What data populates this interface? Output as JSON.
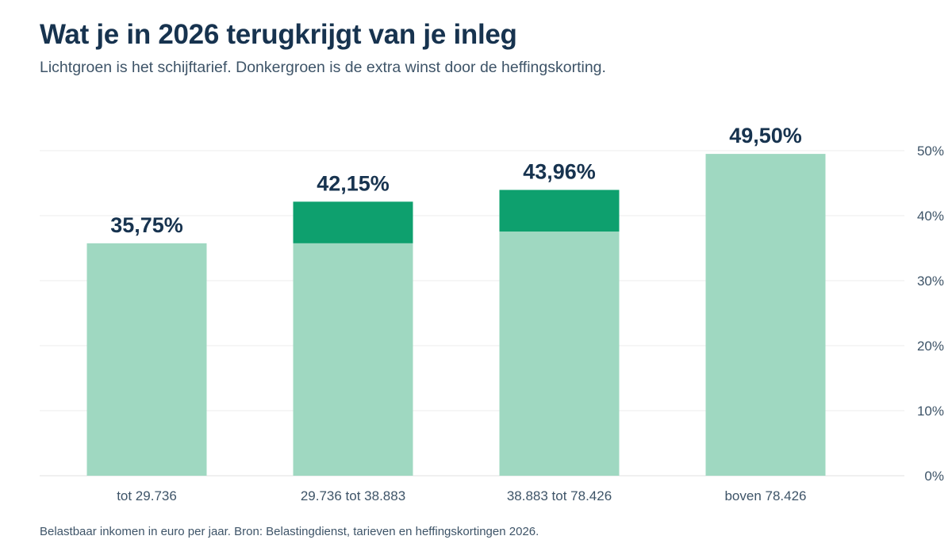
{
  "header": {
    "title": "Wat je in 2026 terugkrijgt van je inleg",
    "subtitle": "Lichtgroen is het schijftarief. Donkergroen is de extra winst door de heffingskorting."
  },
  "footer": {
    "note": "Belastbaar inkomen in euro per jaar. Bron: Belastingdienst, tarieven en heffingskortingen 2026."
  },
  "chart_data": {
    "type": "bar",
    "stacked": true,
    "categories": [
      "tot 29.736",
      "29.736 tot 38.883",
      "38.883 tot 78.426",
      "boven 78.426"
    ],
    "series": [
      {
        "values": [
          35.75,
          35.75,
          37.56,
          49.5
        ],
        "color": "#9fd8c1"
      },
      {
        "values": [
          0,
          6.4,
          6.4,
          0
        ],
        "color": "#0ea06e"
      }
    ],
    "totals": [
      35.75,
      42.15,
      43.96,
      49.5
    ],
    "data_labels": [
      "35,75%",
      "42,15%",
      "43,96%",
      "49,50%"
    ],
    "yticks": [
      0,
      10,
      20,
      30,
      40,
      50
    ],
    "ytick_labels": [
      "0%",
      "10%",
      "20%",
      "30%",
      "40%",
      "50%"
    ],
    "ylim": [
      0,
      50
    ],
    "y_axis_side": "right",
    "grid": true
  }
}
